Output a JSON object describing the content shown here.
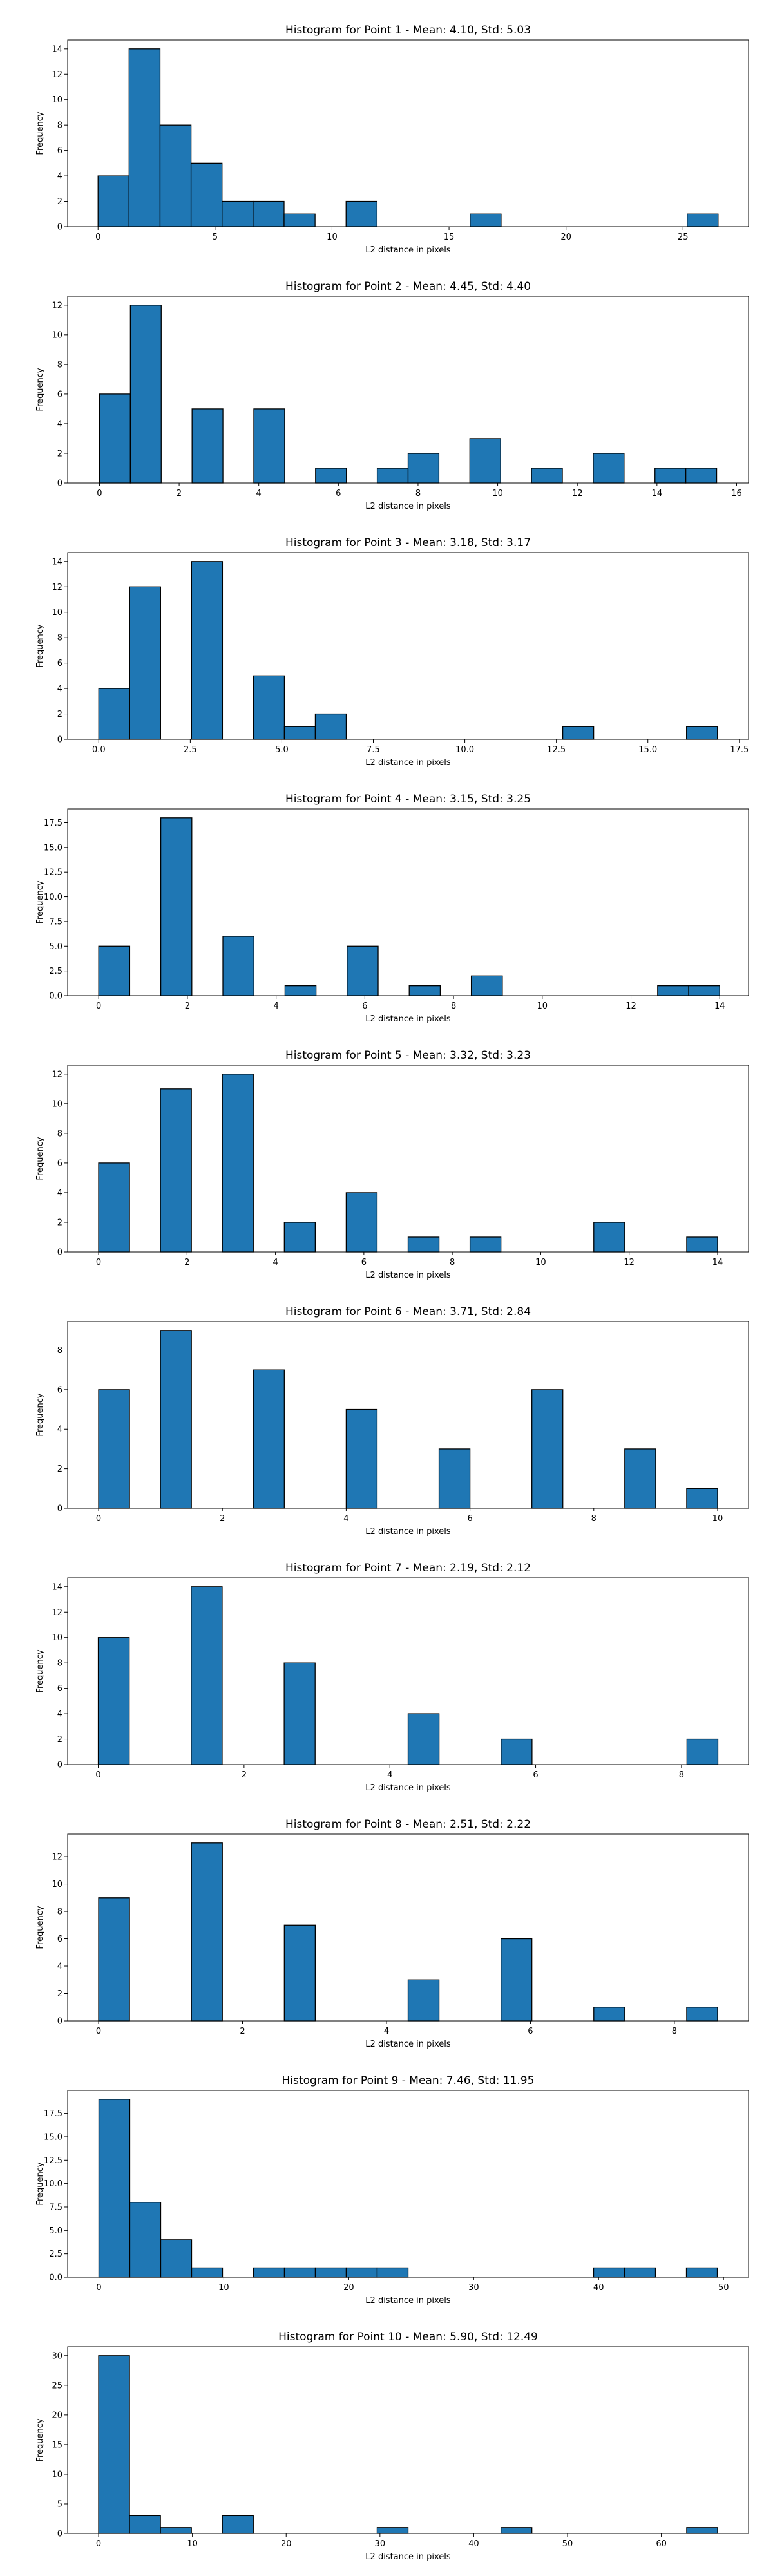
{
  "chart_data": [
    {
      "type": "bar",
      "title": "Histogram for Point 1 - Mean: 4.10, Std: 5.03",
      "xlabel": "L2 distance in pixels",
      "ylabel": "Frequency",
      "xlim": [
        -1.3,
        27.8
      ],
      "ylim": [
        0,
        14.7
      ],
      "xticks": [
        0,
        5,
        10,
        15,
        20,
        25
      ],
      "yticks": [
        0,
        2,
        4,
        6,
        8,
        10,
        12,
        14
      ],
      "bin_start": 0.0,
      "bin_width": 1.325,
      "values": [
        4,
        14,
        8,
        5,
        2,
        2,
        1,
        0,
        2,
        0,
        0,
        0,
        1,
        0,
        0,
        0,
        0,
        0,
        0,
        1
      ],
      "grid": false,
      "color": "#1f77b4",
      "edgecolor": "#000000"
    },
    {
      "type": "bar",
      "title": "Histogram for Point 2 - Mean: 4.45, Std: 4.40",
      "xlabel": "L2 distance in pixels",
      "ylabel": "Frequency",
      "xlim": [
        -0.8,
        16.3
      ],
      "ylim": [
        0,
        12.6
      ],
      "xticks": [
        0,
        2,
        4,
        6,
        8,
        10,
        12,
        14,
        16
      ],
      "yticks": [
        0,
        2,
        4,
        6,
        8,
        10,
        12
      ],
      "bin_start": 0.0,
      "bin_width": 0.775,
      "values": [
        6,
        12,
        0,
        5,
        0,
        5,
        0,
        1,
        0,
        1,
        2,
        0,
        3,
        0,
        1,
        0,
        2,
        0,
        1,
        1
      ],
      "grid": false,
      "color": "#1f77b4",
      "edgecolor": "#000000"
    },
    {
      "type": "bar",
      "title": "Histogram for Point 3 - Mean: 3.18, Std: 3.17",
      "xlabel": "L2 distance in pixels",
      "ylabel": "Frequency",
      "xlim": [
        -0.85,
        17.75
      ],
      "ylim": [
        0,
        14.7
      ],
      "xticks": [
        0.0,
        2.5,
        5.0,
        7.5,
        10.0,
        12.5,
        15.0,
        17.5
      ],
      "xtick_labels": [
        "0.0",
        "2.5",
        "5.0",
        "7.5",
        "10.0",
        "12.5",
        "15.0",
        "17.5"
      ],
      "yticks": [
        0,
        2,
        4,
        6,
        8,
        10,
        12,
        14
      ],
      "bin_start": 0.0,
      "bin_width": 0.845,
      "values": [
        4,
        12,
        0,
        14,
        0,
        5,
        1,
        2,
        0,
        0,
        0,
        0,
        0,
        0,
        0,
        1,
        0,
        0,
        0,
        1
      ],
      "grid": false,
      "color": "#1f77b4",
      "edgecolor": "#000000"
    },
    {
      "type": "bar",
      "title": "Histogram for Point 4 - Mean: 3.15, Std: 3.25",
      "xlabel": "L2 distance in pixels",
      "ylabel": "Frequency",
      "xlim": [
        -0.7,
        14.65
      ],
      "ylim": [
        0,
        18.9
      ],
      "xticks": [
        0,
        2,
        4,
        6,
        8,
        10,
        12,
        14
      ],
      "yticks": [
        0.0,
        2.5,
        5.0,
        7.5,
        10.0,
        12.5,
        15.0,
        17.5
      ],
      "ytick_labels": [
        "0.0",
        "2.5",
        "5.0",
        "7.5",
        "10.0",
        "12.5",
        "15.0",
        "17.5"
      ],
      "bin_start": 0.0,
      "bin_width": 0.7,
      "values": [
        5,
        0,
        18,
        0,
        6,
        0,
        1,
        0,
        5,
        0,
        1,
        0,
        2,
        0,
        0,
        0,
        0,
        0,
        1,
        1
      ],
      "grid": false,
      "color": "#1f77b4",
      "edgecolor": "#000000"
    },
    {
      "type": "bar",
      "title": "Histogram for Point 5 - Mean: 3.32, Std: 3.23",
      "xlabel": "L2 distance in pixels",
      "ylabel": "Frequency",
      "xlim": [
        -0.7,
        14.7
      ],
      "ylim": [
        0,
        12.6
      ],
      "xticks": [
        0,
        2,
        4,
        6,
        8,
        10,
        12,
        14
      ],
      "yticks": [
        0,
        2,
        4,
        6,
        8,
        10,
        12
      ],
      "bin_start": 0.0,
      "bin_width": 0.7,
      "values": [
        6,
        0,
        11,
        0,
        12,
        0,
        2,
        0,
        4,
        0,
        1,
        0,
        1,
        0,
        0,
        0,
        2,
        0,
        0,
        1
      ],
      "grid": false,
      "color": "#1f77b4",
      "edgecolor": "#000000"
    },
    {
      "type": "bar",
      "title": "Histogram for Point 6 - Mean: 3.71, Std: 2.84",
      "xlabel": "L2 distance in pixels",
      "ylabel": "Frequency",
      "xlim": [
        -0.5,
        10.5
      ],
      "ylim": [
        0,
        9.45
      ],
      "xticks": [
        0,
        2,
        4,
        6,
        8,
        10
      ],
      "yticks": [
        0,
        2,
        4,
        6,
        8
      ],
      "bin_start": 0.0,
      "bin_width": 0.5,
      "values": [
        6,
        0,
        9,
        0,
        0,
        7,
        0,
        0,
        5,
        0,
        0,
        3,
        0,
        0,
        6,
        0,
        0,
        3,
        0,
        1
      ],
      "grid": false,
      "color": "#1f77b4",
      "edgecolor": "#000000"
    },
    {
      "type": "bar",
      "title": "Histogram for Point 7 - Mean: 2.19, Std: 2.12",
      "xlabel": "L2 distance in pixels",
      "ylabel": "Frequency",
      "xlim": [
        -0.42,
        8.92
      ],
      "ylim": [
        0,
        14.7
      ],
      "xticks": [
        0,
        2,
        4,
        6,
        8
      ],
      "yticks": [
        0,
        2,
        4,
        6,
        8,
        10,
        12,
        14
      ],
      "bin_start": 0.0,
      "bin_width": 0.425,
      "values": [
        10,
        0,
        0,
        14,
        0,
        0,
        8,
        0,
        0,
        0,
        4,
        0,
        0,
        2,
        0,
        0,
        0,
        0,
        0,
        2
      ],
      "grid": false,
      "color": "#1f77b4",
      "edgecolor": "#000000"
    },
    {
      "type": "bar",
      "title": "Histogram for Point 8 - Mean: 2.51, Std: 2.22",
      "xlabel": "L2 distance in pixels",
      "ylabel": "Frequency",
      "xlim": [
        -0.43,
        9.03
      ],
      "ylim": [
        0,
        13.65
      ],
      "xticks": [
        0,
        2,
        4,
        6,
        8
      ],
      "yticks": [
        0,
        2,
        4,
        6,
        8,
        10,
        12
      ],
      "bin_start": 0.0,
      "bin_width": 0.43,
      "values": [
        9,
        0,
        0,
        13,
        0,
        0,
        7,
        0,
        0,
        0,
        3,
        0,
        0,
        6,
        0,
        0,
        1,
        0,
        0,
        1
      ],
      "grid": false,
      "color": "#1f77b4",
      "edgecolor": "#000000"
    },
    {
      "type": "bar",
      "title": "Histogram for Point 9 - Mean: 7.46, Std: 11.95",
      "xlabel": "L2 distance in pixels",
      "ylabel": "Frequency",
      "xlim": [
        -2.5,
        52.0
      ],
      "ylim": [
        0,
        19.95
      ],
      "xticks": [
        0,
        10,
        20,
        30,
        40,
        50
      ],
      "yticks": [
        0.0,
        2.5,
        5.0,
        7.5,
        10.0,
        12.5,
        15.0,
        17.5
      ],
      "ytick_labels": [
        "0.0",
        "2.5",
        "5.0",
        "7.5",
        "10.0",
        "12.5",
        "15.0",
        "17.5"
      ],
      "bin_start": 0.0,
      "bin_width": 2.475,
      "values": [
        19,
        8,
        4,
        1,
        0,
        1,
        1,
        1,
        1,
        1,
        0,
        0,
        0,
        0,
        0,
        0,
        1,
        1,
        0,
        1
      ],
      "grid": false,
      "color": "#1f77b4",
      "edgecolor": "#000000"
    },
    {
      "type": "bar",
      "title": "Histogram for Point 10 - Mean: 5.90, Std: 12.49",
      "xlabel": "L2 distance in pixels",
      "ylabel": "Frequency",
      "xlim": [
        -3.3,
        69.3
      ],
      "ylim": [
        0,
        31.5
      ],
      "xticks": [
        0,
        10,
        20,
        30,
        40,
        50,
        60
      ],
      "yticks": [
        0,
        5,
        10,
        15,
        20,
        25,
        30
      ],
      "bin_start": 0.0,
      "bin_width": 3.3,
      "values": [
        30,
        3,
        1,
        0,
        3,
        0,
        0,
        0,
        0,
        1,
        0,
        0,
        0,
        1,
        0,
        0,
        0,
        0,
        0,
        1
      ],
      "grid": false,
      "color": "#1f77b4",
      "edgecolor": "#000000"
    }
  ]
}
